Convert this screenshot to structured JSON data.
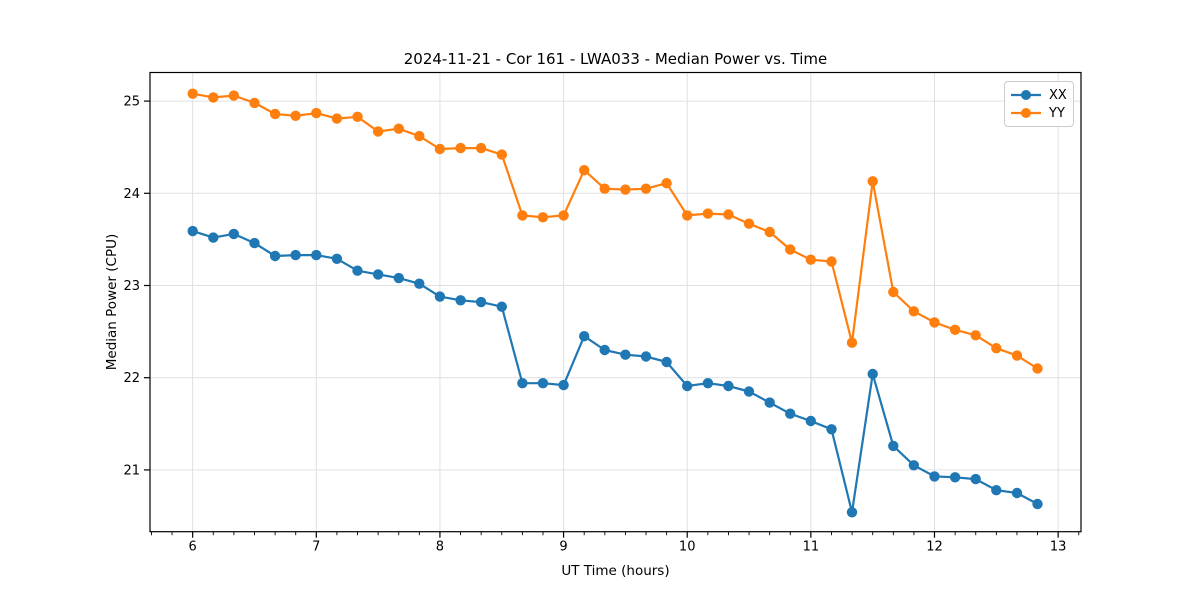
{
  "chart_data": {
    "type": "line",
    "title": "2024-11-21 - Cor 161 - LWA033 - Median Power vs. Time",
    "xlabel": "UT Time (hours)",
    "ylabel": "Median Power (CPU)",
    "xlim": [
      5.655,
      13.185
    ],
    "ylim": [
      20.33,
      25.31
    ],
    "xticks": [
      6,
      7,
      8,
      9,
      10,
      11,
      12,
      13
    ],
    "yticks": [
      21,
      22,
      23,
      24,
      25
    ],
    "minor_xtick_step": 0.16667,
    "grid": true,
    "grid_color": "#e0e0e0",
    "legend_position": "top-right",
    "marker": "circle",
    "x": [
      6.0,
      6.167,
      6.333,
      6.5,
      6.667,
      6.833,
      7.0,
      7.167,
      7.333,
      7.5,
      7.667,
      7.833,
      8.0,
      8.167,
      8.333,
      8.5,
      8.667,
      8.833,
      9.0,
      9.167,
      9.333,
      9.5,
      9.667,
      9.833,
      10.0,
      10.167,
      10.333,
      10.5,
      10.667,
      10.833,
      11.0,
      11.167,
      11.333,
      11.5,
      11.667,
      11.833,
      12.0,
      12.167,
      12.333,
      12.5,
      12.667,
      12.833
    ],
    "series": [
      {
        "name": "XX",
        "color": "#1f77b4",
        "values": [
          23.59,
          23.52,
          23.56,
          23.46,
          23.32,
          23.33,
          23.33,
          23.29,
          23.16,
          23.12,
          23.08,
          23.02,
          22.88,
          22.84,
          22.82,
          22.77,
          21.94,
          21.94,
          21.92,
          22.45,
          22.3,
          22.25,
          22.23,
          22.17,
          21.91,
          21.94,
          21.91,
          21.85,
          21.73,
          21.61,
          21.53,
          21.44,
          20.54,
          22.04,
          21.26,
          21.05,
          20.93,
          20.92,
          20.9,
          20.78,
          20.75,
          20.63
        ]
      },
      {
        "name": "YY",
        "color": "#ff7f0e",
        "values": [
          25.08,
          25.04,
          25.06,
          24.98,
          24.86,
          24.84,
          24.87,
          24.81,
          24.83,
          24.67,
          24.7,
          24.62,
          24.48,
          24.49,
          24.49,
          24.42,
          23.76,
          23.74,
          23.76,
          24.25,
          24.05,
          24.04,
          24.05,
          24.11,
          23.76,
          23.78,
          23.77,
          23.67,
          23.58,
          23.39,
          23.28,
          23.26,
          22.38,
          24.13,
          22.93,
          22.72,
          22.6,
          22.52,
          22.46,
          22.32,
          22.24,
          22.1
        ]
      }
    ]
  }
}
